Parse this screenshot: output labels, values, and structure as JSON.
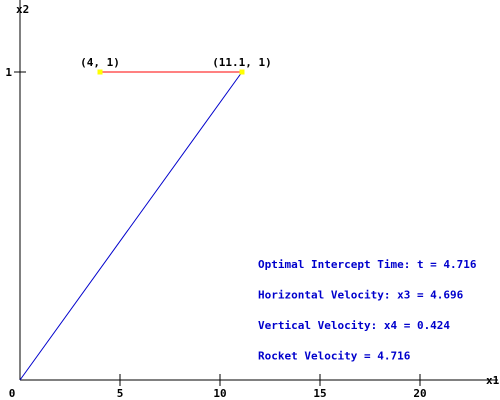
{
  "chart_data": {
    "type": "line",
    "x_label": "x1",
    "y_label": "x2",
    "xlim": [
      0,
      23.5
    ],
    "ylim": [
      0,
      1.2
    ],
    "xticks": [
      0,
      5,
      10,
      15,
      20
    ],
    "yticks": [
      1
    ],
    "series": [
      {
        "color": "#0000cc",
        "x": [
          0,
          11.1
        ],
        "values": [
          0,
          1
        ]
      },
      {
        "color": "#ff0000",
        "x": [
          4,
          11.1
        ],
        "values": [
          1,
          1
        ]
      }
    ],
    "points": {
      "color": "#ffff00",
      "x": [
        4,
        11.1
      ],
      "values": [
        1,
        1
      ],
      "labels": [
        "(4, 1)",
        "(11.1, 1)"
      ]
    },
    "annotations": [
      "Optimal Intercept Time: t = 4.716",
      "Horizontal Velocity: x3 = 4.696",
      "Vertical Velocity: x4 = 0.424",
      "Rocket Velocity = 4.716"
    ],
    "annotation_color": "#0000cc"
  }
}
